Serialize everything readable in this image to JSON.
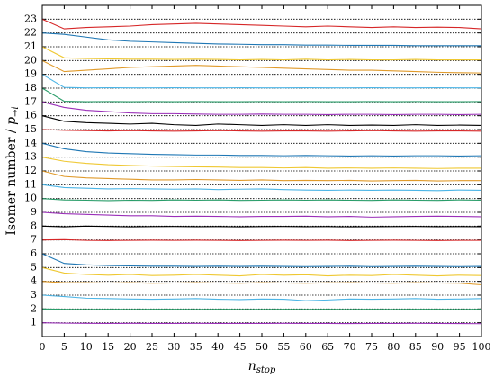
{
  "chart_data": {
    "type": "line",
    "xlabel": {
      "symbol": "n",
      "subscript": "stop"
    },
    "ylabel": {
      "text": "Isomer number / ",
      "symbol": "p",
      "subscript": "→i"
    },
    "xlim": [
      0,
      100
    ],
    "xticks": [
      0,
      5,
      10,
      15,
      20,
      25,
      30,
      35,
      40,
      45,
      50,
      55,
      60,
      65,
      70,
      75,
      80,
      85,
      90,
      95,
      100
    ],
    "ylim": [
      0,
      24
    ],
    "yticks": [
      1,
      2,
      3,
      4,
      5,
      6,
      7,
      8,
      9,
      10,
      11,
      12,
      13,
      14,
      15,
      16,
      17,
      18,
      19,
      20,
      21,
      22,
      23
    ],
    "grid": true,
    "grid_style": "dotted",
    "x": [
      0,
      5,
      10,
      15,
      20,
      25,
      30,
      35,
      40,
      45,
      50,
      55,
      60,
      65,
      70,
      75,
      80,
      85,
      90,
      95,
      100
    ],
    "series": [
      {
        "color": "#9a2fb8",
        "values": [
          1,
          0.97,
          0.96,
          0.95,
          0.96,
          0.95,
          0.95,
          0.96,
          0.95,
          0.95,
          0.95,
          0.96,
          0.95,
          0.95,
          0.94,
          0.95,
          0.95,
          0.96,
          0.95,
          0.94,
          0.93
        ]
      },
      {
        "color": "#2a9d6a",
        "values": [
          2,
          1.98,
          1.97,
          1.98,
          1.97,
          1.98,
          1.98,
          1.97,
          1.98,
          1.97,
          1.97,
          1.98,
          1.97,
          1.98,
          1.97,
          1.98,
          1.97,
          1.98,
          1.98,
          1.97,
          1.98
        ]
      },
      {
        "color": "#4cb5e6",
        "values": [
          3,
          2.9,
          2.78,
          2.75,
          2.72,
          2.7,
          2.72,
          2.75,
          2.7,
          2.68,
          2.72,
          2.7,
          2.6,
          2.65,
          2.72,
          2.7,
          2.72,
          2.75,
          2.7,
          2.72,
          2.75
        ]
      },
      {
        "color": "#e09a2a",
        "values": [
          4,
          3.9,
          3.9,
          3.88,
          3.9,
          3.87,
          3.88,
          3.9,
          3.88,
          3.87,
          3.9,
          3.88,
          3.87,
          3.89,
          3.9,
          3.88,
          3.87,
          3.9,
          3.88,
          3.87,
          3.75
        ]
      },
      {
        "color": "#efc832",
        "values": [
          5,
          4.6,
          4.5,
          4.45,
          4.5,
          4.42,
          4.45,
          4.5,
          4.45,
          4.4,
          4.5,
          4.45,
          4.48,
          4.4,
          4.45,
          4.42,
          4.5,
          4.45,
          4.4,
          4.45,
          4.42
        ]
      },
      {
        "color": "#1f77b4",
        "values": [
          6,
          5.3,
          5.2,
          5.15,
          5.12,
          5.1,
          5.1,
          5.08,
          5.1,
          5.08,
          5.1,
          5.08,
          5.07,
          5.08,
          5.1,
          5.07,
          5.08,
          5.1,
          5.08,
          5.07,
          5.08
        ]
      },
      {
        "color": "#d62728",
        "values": [
          7,
          7.02,
          6.97,
          6.96,
          6.97,
          6.98,
          6.97,
          6.98,
          6.97,
          6.96,
          6.97,
          6.98,
          6.97,
          6.98,
          6.96,
          6.97,
          6.98,
          6.97,
          6.96,
          6.97,
          6.97
        ]
      },
      {
        "color": "#000000",
        "values": [
          8,
          7.95,
          8.0,
          7.98,
          7.95,
          7.97,
          7.98,
          7.96,
          7.97,
          7.95,
          7.97,
          7.98,
          7.96,
          7.97,
          7.95,
          7.96,
          7.97,
          7.98,
          7.96,
          7.97,
          7.96
        ]
      },
      {
        "color": "#9a2fb8",
        "values": [
          9,
          8.9,
          8.85,
          8.8,
          8.75,
          8.75,
          8.7,
          8.72,
          8.7,
          8.68,
          8.7,
          8.7,
          8.72,
          8.68,
          8.7,
          8.65,
          8.68,
          8.7,
          8.72,
          8.7,
          8.68
        ]
      },
      {
        "color": "#2a9d6a",
        "values": [
          10,
          9.9,
          9.88,
          9.85,
          9.88,
          9.87,
          9.9,
          9.88,
          9.9,
          9.87,
          9.88,
          9.9,
          9.88,
          9.9,
          9.88,
          9.87,
          9.9,
          9.88,
          9.87,
          9.9,
          9.88
        ]
      },
      {
        "color": "#4cb5e6",
        "values": [
          11,
          10.8,
          10.75,
          10.7,
          10.72,
          10.7,
          10.68,
          10.7,
          10.65,
          10.68,
          10.7,
          10.65,
          10.62,
          10.6,
          10.62,
          10.6,
          10.62,
          10.6,
          10.58,
          10.62,
          10.6
        ]
      },
      {
        "color": "#e09a2a",
        "values": [
          12,
          11.6,
          11.5,
          11.45,
          11.4,
          11.35,
          11.35,
          11.38,
          11.35,
          11.32,
          11.35,
          11.3,
          11.32,
          11.3,
          11.32,
          11.28,
          11.3,
          11.32,
          11.28,
          11.3,
          11.3
        ]
      },
      {
        "color": "#efc832",
        "values": [
          13,
          12.7,
          12.55,
          12.45,
          12.4,
          12.35,
          12.32,
          12.3,
          12.28,
          12.25,
          12.25,
          12.22,
          12.25,
          12.2,
          12.22,
          12.2,
          12.22,
          12.2,
          12.18,
          12.2,
          12.2
        ]
      },
      {
        "color": "#1f77b4",
        "values": [
          14,
          13.6,
          13.4,
          13.3,
          13.25,
          13.2,
          13.18,
          13.15,
          13.15,
          13.12,
          13.12,
          13.1,
          13.12,
          13.1,
          13.08,
          13.1,
          13.08,
          13.1,
          13.1,
          13.08,
          13.1
        ]
      },
      {
        "color": "#d62728",
        "values": [
          15,
          14.95,
          14.92,
          14.9,
          14.92,
          14.9,
          14.88,
          14.9,
          14.92,
          14.9,
          14.88,
          14.9,
          14.9,
          14.88,
          14.9,
          14.92,
          14.9,
          14.88,
          14.9,
          14.9,
          14.88
        ]
      },
      {
        "color": "#000000",
        "values": [
          16,
          15.6,
          15.5,
          15.45,
          15.4,
          15.45,
          15.35,
          15.3,
          15.4,
          15.35,
          15.3,
          15.35,
          15.3,
          15.35,
          15.3,
          15.32,
          15.3,
          15.35,
          15.3,
          15.32,
          15.3
        ]
      },
      {
        "color": "#9a2fb8",
        "values": [
          17,
          16.6,
          16.4,
          16.3,
          16.2,
          16.15,
          16.15,
          16.12,
          16.1,
          16.1,
          16.12,
          16.1,
          16.1,
          16.08,
          16.1,
          16.1,
          16.08,
          16.1,
          16.1,
          16.08,
          16.1
        ]
      },
      {
        "color": "#2a9d6a",
        "values": [
          18,
          17.05,
          17.02,
          17.03,
          17.02,
          17.03,
          17.02,
          17.03,
          17.02,
          17.02,
          17.03,
          17.02,
          17.03,
          17.02,
          17.02,
          17.03,
          17.02,
          17.03,
          17.02,
          17.02,
          17.03
        ]
      },
      {
        "color": "#4cb5e6",
        "values": [
          19,
          18.05,
          18.02,
          18.03,
          18.02,
          18.02,
          18.03,
          18.02,
          18.02,
          18.03,
          18.02,
          18.02,
          18.03,
          18.02,
          18.02,
          18.03,
          18.02,
          18.02,
          18.03,
          18.02,
          18.02
        ]
      },
      {
        "color": "#e09a2a",
        "values": [
          20,
          19.2,
          19.3,
          19.4,
          19.5,
          19.55,
          19.6,
          19.65,
          19.6,
          19.55,
          19.5,
          19.45,
          19.4,
          19.35,
          19.3,
          19.3,
          19.25,
          19.2,
          19.15,
          19.12,
          19.1
        ]
      },
      {
        "color": "#efc832",
        "values": [
          21,
          20.2,
          20.15,
          20.12,
          20.1,
          20.1,
          20.08,
          20.1,
          20.08,
          20.05,
          20.08,
          20.05,
          20.1,
          20.05,
          20.08,
          20.05,
          20.05,
          20.08,
          20.05,
          20.05,
          20.05
        ]
      },
      {
        "color": "#1f77b4",
        "values": [
          22,
          21.9,
          21.7,
          21.5,
          21.4,
          21.35,
          21.3,
          21.25,
          21.2,
          21.18,
          21.15,
          21.15,
          21.12,
          21.12,
          21.1,
          21.1,
          21.1,
          21.08,
          21.08,
          21.08,
          21.08
        ]
      },
      {
        "color": "#d62728",
        "values": [
          23,
          22.3,
          22.4,
          22.45,
          22.5,
          22.6,
          22.65,
          22.7,
          22.65,
          22.6,
          22.55,
          22.5,
          22.45,
          22.5,
          22.45,
          22.4,
          22.45,
          22.4,
          22.42,
          22.4,
          22.3
        ]
      }
    ]
  }
}
